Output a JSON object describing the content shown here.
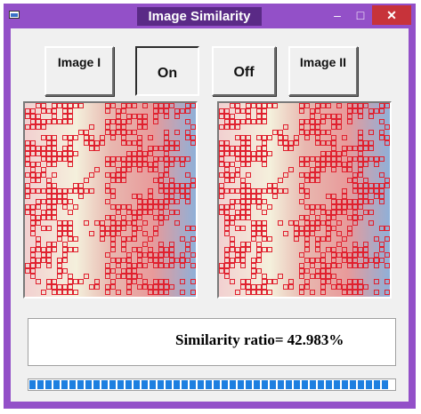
{
  "window": {
    "title": "Image Similarity",
    "controls": {
      "minimize": "–",
      "maximize": "□",
      "close": "✕"
    },
    "frame_color": "#9350c8",
    "close_color": "#c7333a"
  },
  "toolbar": {
    "image1_label": "Image I",
    "on_label": "On",
    "off_label": "Off",
    "image2_label": "Image II"
  },
  "result": {
    "ratio_label": "Similarity ratio=",
    "ratio_value": "42.983%"
  },
  "progress": {
    "fraction": 0.985,
    "color": "#1e7fe0"
  },
  "colors": {
    "grid_red": "#e0202e",
    "heat_low": "#8fb0d0",
    "heat_mid": "#e8a0a0",
    "heat_high": "#f4f0dc"
  }
}
